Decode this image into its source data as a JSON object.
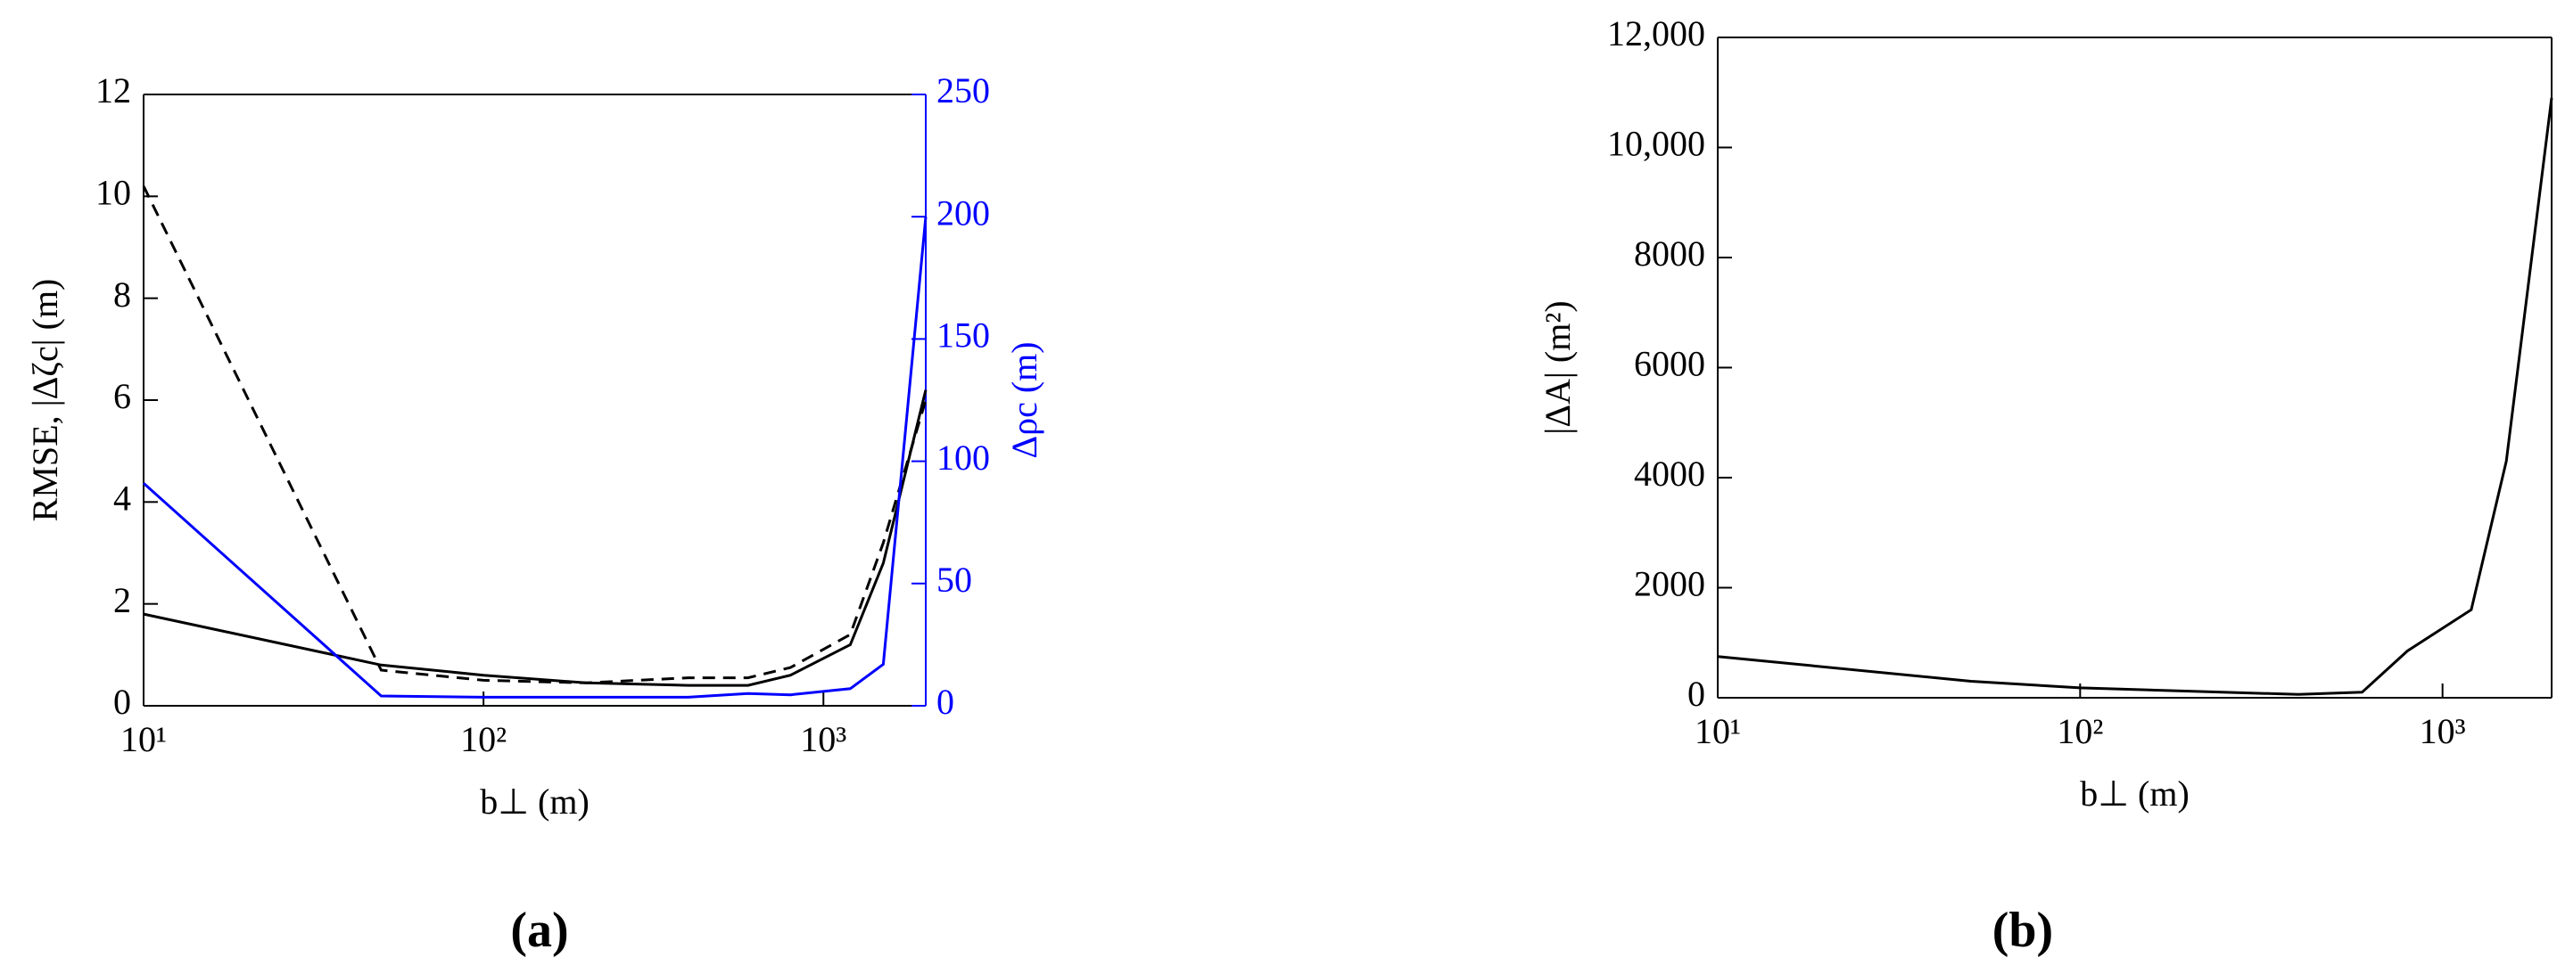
{
  "chart_data": [
    {
      "type": "line",
      "label": "(a)",
      "xlabel": "b⊥ (m)",
      "ylabel": "RMSE, |Δζc| (m)",
      "y2label": "Δρc (m)",
      "y2color": "#0000ff",
      "xscale": "log",
      "xlim": [
        10,
        2000
      ],
      "xticks": [
        {
          "value": 10,
          "label": "10¹"
        },
        {
          "value": 100,
          "label": "10²"
        },
        {
          "value": 1000,
          "label": "10³"
        }
      ],
      "ylim": [
        0,
        12
      ],
      "yticks": [
        0,
        2,
        4,
        6,
        8,
        10,
        12
      ],
      "y2lim": [
        0,
        250
      ],
      "y2ticks": [
        0,
        50,
        100,
        150,
        200,
        250
      ],
      "x": [
        10,
        50,
        100,
        200,
        400,
        600,
        800,
        1200,
        1500,
        2000
      ],
      "series": [
        {
          "color": "#000000",
          "dash": false,
          "values": [
            1.8,
            0.8,
            0.6,
            0.45,
            0.4,
            0.4,
            0.6,
            1.2,
            2.8,
            6.2
          ]
        },
        {
          "color": "#000000",
          "dash": true,
          "values": [
            10.2,
            0.7,
            0.5,
            0.45,
            0.55,
            0.55,
            0.75,
            1.4,
            3.2,
            6.0
          ]
        },
        {
          "color": "#0000ff",
          "dash": false,
          "axis": "y2",
          "values": [
            91,
            4,
            3.5,
            3.5,
            3.5,
            5,
            4.5,
            7,
            17,
            200
          ]
        }
      ]
    },
    {
      "type": "line",
      "label": "(b)",
      "xlabel": "b⊥ (m)",
      "ylabel": "|ΔA| (m²)",
      "xscale": "log",
      "xlim": [
        10,
        2000
      ],
      "xticks": [
        {
          "value": 10,
          "label": "10¹"
        },
        {
          "value": 100,
          "label": "10²"
        },
        {
          "value": 1000,
          "label": "10³"
        }
      ],
      "ylim": [
        0,
        12000
      ],
      "yticks": [
        0,
        2000,
        4000,
        6000,
        8000,
        {
          "value": 10000,
          "label": "10,000"
        },
        {
          "value": 12000,
          "label": "12,000"
        }
      ],
      "x": [
        10,
        50,
        100,
        200,
        400,
        600,
        800,
        1200,
        1500,
        2000
      ],
      "series": [
        {
          "color": "#000000",
          "dash": false,
          "values": [
            750,
            300,
            180,
            120,
            60,
            100,
            850,
            1600,
            4300,
            10900
          ]
        }
      ]
    }
  ]
}
